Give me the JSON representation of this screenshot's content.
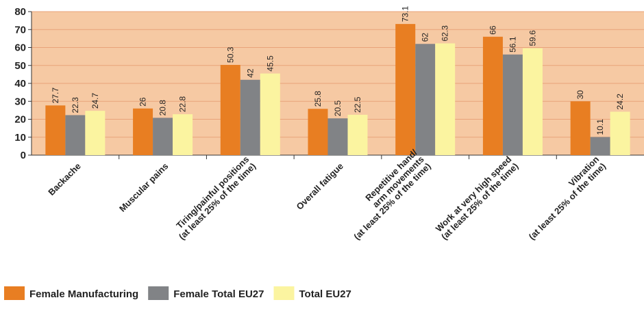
{
  "chart_data": {
    "type": "bar",
    "categories": [
      [
        "Backache"
      ],
      [
        "Muscular pains"
      ],
      [
        "Tiring/painful positions",
        "(at least 25% of the time)"
      ],
      [
        "Overall fatigue"
      ],
      [
        "Repetitive hand/",
        "arm movements",
        "(at least 25% of the time)"
      ],
      [
        "Work at very high speed",
        "(at least 25% of the time)"
      ],
      [
        "Vibration",
        "(at least 25% of the time)"
      ]
    ],
    "series": [
      {
        "name": "Female Manufacturing",
        "color": "#e87e22",
        "values": [
          27.7,
          26,
          50.3,
          25.8,
          73.1,
          66,
          30
        ]
      },
      {
        "name": "Female Total EU27",
        "color": "#818386",
        "values": [
          22.3,
          20.8,
          42,
          20.5,
          62,
          56.1,
          10.1
        ]
      },
      {
        "name": "Total EU27",
        "color": "#fbf4a0",
        "values": [
          24.7,
          22.8,
          45.5,
          22.5,
          62.3,
          59.6,
          24.2
        ]
      }
    ],
    "yticks": [
      0,
      10,
      20,
      30,
      40,
      50,
      60,
      70,
      80
    ],
    "ylim": [
      0,
      80
    ],
    "grid": true,
    "legend": "bottom-left",
    "plot_background": "#f6c9a3",
    "gridline_color": "#e8a37a",
    "title": "",
    "xlabel": "",
    "ylabel": ""
  }
}
